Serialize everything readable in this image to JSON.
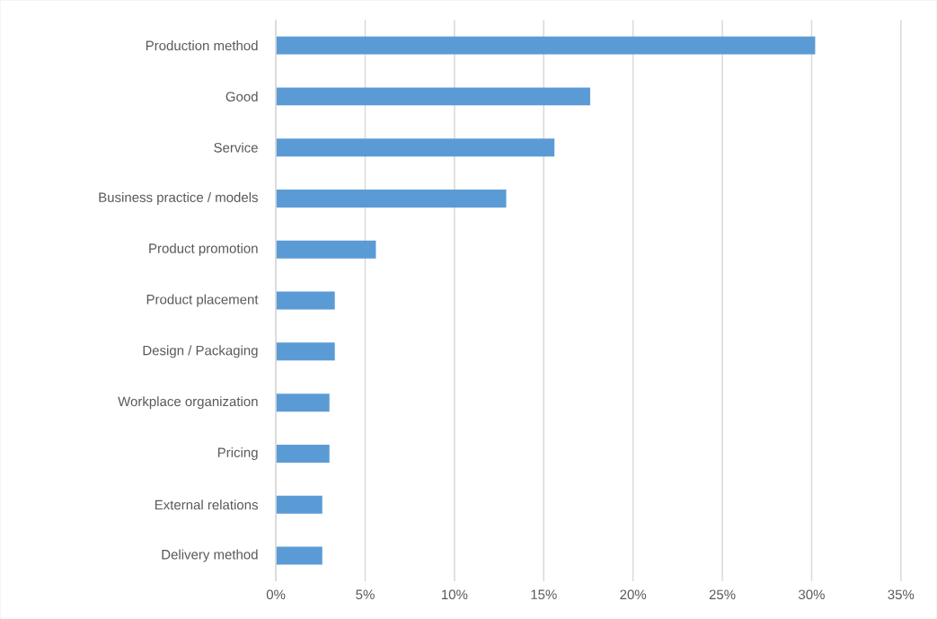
{
  "chart_data": {
    "type": "bar",
    "orientation": "horizontal",
    "categories": [
      "Production method",
      "Good",
      "Service",
      "Business practice / models",
      "Product promotion",
      "Product placement",
      "Design / Packaging",
      "Workplace organization",
      "Pricing",
      "External relations",
      "Delivery method"
    ],
    "values": [
      30.2,
      17.6,
      15.6,
      12.9,
      5.6,
      3.3,
      3.3,
      3.0,
      3.0,
      2.6,
      2.6
    ],
    "color": "#5b9bd5",
    "xlim": [
      0,
      35
    ],
    "xticks": [
      {
        "value": 0,
        "label": "0%"
      },
      {
        "value": 5,
        "label": "5%"
      },
      {
        "value": 10,
        "label": "10%"
      },
      {
        "value": 15,
        "label": "15%"
      },
      {
        "value": 20,
        "label": "20%"
      },
      {
        "value": 25,
        "label": "25%"
      },
      {
        "value": 30,
        "label": "30%"
      },
      {
        "value": 35,
        "label": "35%"
      }
    ],
    "grid": "x"
  }
}
